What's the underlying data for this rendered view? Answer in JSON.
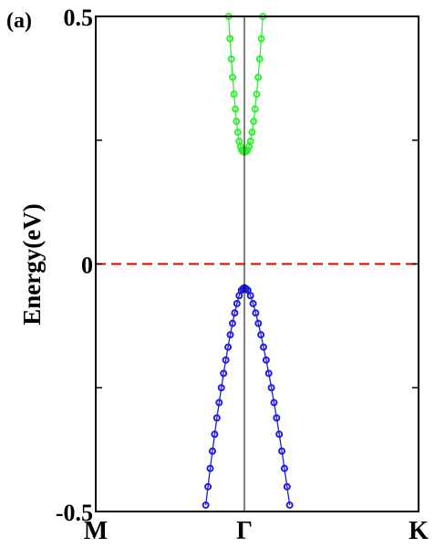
{
  "panel_label": "(a)",
  "chart_data": {
    "type": "scatter",
    "title": "",
    "xlabel": "",
    "ylabel": "Energy(eV)",
    "ylim": [
      -0.5,
      0.5
    ],
    "x_ticks": [
      {
        "label": "M",
        "value": -1
      },
      {
        "label": "Γ",
        "value": 0
      },
      {
        "label": "K",
        "value": 1
      }
    ],
    "y_ticks": [
      {
        "label": "-0.5",
        "value": -0.5
      },
      {
        "label": "0",
        "value": 0
      },
      {
        "label": "0.5",
        "value": 0.5
      }
    ],
    "fermi_level": {
      "value": 0,
      "color": "#e00000",
      "style": "dashed"
    },
    "gamma_line": {
      "value": 0,
      "color": "#000000"
    },
    "grid": false,
    "series": [
      {
        "role": "conduction-band",
        "color": "#33ee33",
        "marker": "open-circle",
        "x": [
          -0.106,
          -0.097,
          -0.088,
          -0.079,
          -0.07,
          -0.061,
          -0.053,
          -0.044,
          -0.035,
          -0.026,
          -0.018,
          -0.009,
          0.0,
          0.009,
          0.018,
          0.026,
          0.035,
          0.044,
          0.053,
          0.061,
          0.07,
          0.079,
          0.088,
          0.097,
          0.106
        ],
        "y": [
          0.5,
          0.455,
          0.414,
          0.377,
          0.343,
          0.313,
          0.288,
          0.266,
          0.248,
          0.237,
          0.23,
          0.227,
          0.226,
          0.227,
          0.23,
          0.237,
          0.248,
          0.266,
          0.288,
          0.313,
          0.343,
          0.377,
          0.414,
          0.455,
          0.5
        ]
      },
      {
        "role": "valence-band",
        "color": "#1f1fdd",
        "marker": "open-circle",
        "x": [
          -0.26,
          -0.245,
          -0.23,
          -0.215,
          -0.2,
          -0.185,
          -0.17,
          -0.155,
          -0.14,
          -0.125,
          -0.11,
          -0.095,
          -0.08,
          -0.065,
          -0.05,
          -0.035,
          -0.02,
          -0.01,
          0.0,
          0.01,
          0.02,
          0.035,
          0.05,
          0.065,
          0.08,
          0.095,
          0.11,
          0.125,
          0.14,
          0.155,
          0.17,
          0.185,
          0.2,
          0.215,
          0.23,
          0.245,
          0.26
        ],
        "y": [
          -0.487,
          -0.45,
          -0.413,
          -0.378,
          -0.344,
          -0.311,
          -0.28,
          -0.25,
          -0.221,
          -0.194,
          -0.168,
          -0.143,
          -0.12,
          -0.099,
          -0.08,
          -0.064,
          -0.053,
          -0.05,
          -0.048,
          -0.05,
          -0.053,
          -0.064,
          -0.08,
          -0.099,
          -0.12,
          -0.143,
          -0.168,
          -0.194,
          -0.221,
          -0.25,
          -0.28,
          -0.311,
          -0.344,
          -0.378,
          -0.413,
          -0.45,
          -0.487
        ]
      }
    ]
  }
}
